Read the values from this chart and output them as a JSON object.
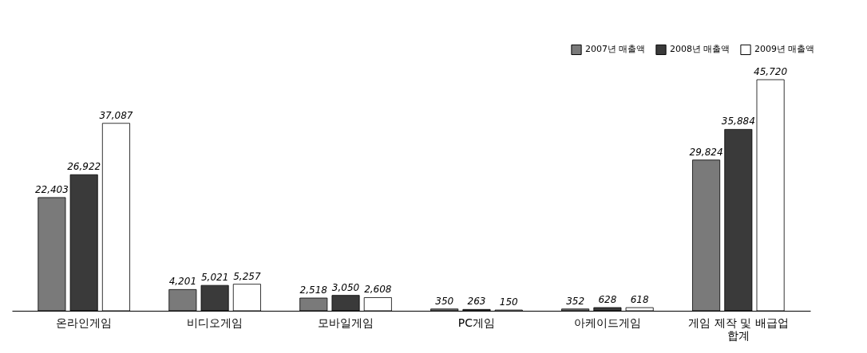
{
  "chart_data": {
    "type": "bar",
    "categories": [
      "온라인게임",
      "비디오게임",
      "모바일게임",
      "PC게임",
      "아케이드게임",
      "게임 제작 및 배급업 합계"
    ],
    "series": [
      {
        "name": "2007년 매출액",
        "color": "#7a7a7a",
        "values": [
          22403,
          4201,
          2518,
          350,
          352,
          29824
        ],
        "value_labels": [
          "22,403",
          "4,201",
          "2,518",
          "350",
          "352",
          "29,824"
        ]
      },
      {
        "name": "2008년 매출액",
        "color": "#3a3a3a",
        "values": [
          26922,
          5021,
          3050,
          263,
          628,
          35884
        ],
        "value_labels": [
          "26,922",
          "5,021",
          "3,050",
          "263",
          "628",
          "35,884"
        ]
      },
      {
        "name": "2009년 매출액",
        "color": "#ffffff",
        "values": [
          37087,
          5257,
          2608,
          150,
          618,
          45720
        ],
        "value_labels": [
          "37,087",
          "5,257",
          "2,608",
          "150",
          "618",
          "45,720"
        ]
      }
    ],
    "legend": "top right",
    "grid": false
  }
}
